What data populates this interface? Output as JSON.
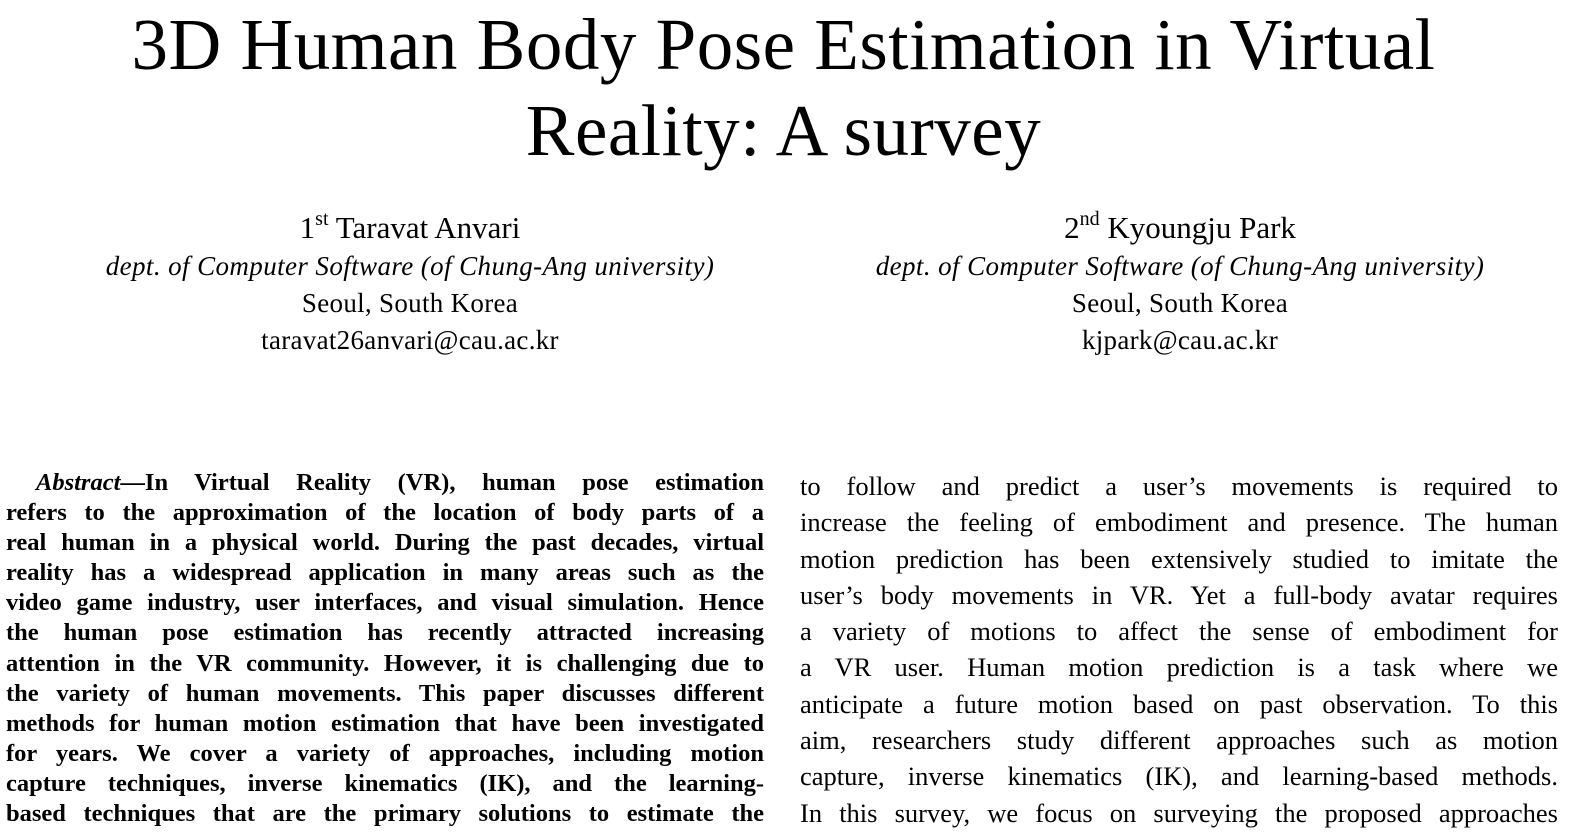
{
  "paper": {
    "title_line1": "3D Human Body Pose Estimation in Virtual",
    "title_line2": "Reality: A survey",
    "authors": [
      {
        "ordinal_number": "1",
        "ordinal_suffix": "st",
        "name": "Taravat Anvari",
        "dept": "dept. of Computer Software (of Chung-Ang university)",
        "city": "Seoul, South Korea",
        "email": "taravat26anvari@cau.ac.kr"
      },
      {
        "ordinal_number": "2",
        "ordinal_suffix": "nd",
        "name": "Kyoungju Park",
        "dept": "dept. of Computer Software (of Chung-Ang university)",
        "city": "Seoul, South Korea",
        "email": "kjpark@cau.ac.kr"
      }
    ],
    "abstract_heading": "Abstract",
    "abstract_lines": [
      "—In Virtual Reality (VR), human pose estimation",
      "refers to the approximation of the location of body parts of a",
      "real human in a physical world. During the past decades, virtual",
      "reality has a widespread application in many areas such as the",
      "video game industry, user interfaces, and visual simulation. Hence",
      "the human pose estimation has recently attracted increasing",
      "attention in the VR community. However, it is challenging due to",
      "the variety of human movements. This paper discusses different",
      "methods for human motion estimation that have been investigated",
      "for years. We cover a variety of approaches, including motion",
      "capture techniques, inverse kinematics (IK), and the learning-",
      "based techniques that are the primary solutions to estimate the"
    ],
    "body_lines": [
      "to follow and predict a user’s movements is required to",
      "increase the feeling of embodiment and presence. The human",
      "motion prediction has been extensively studied to imitate the",
      "user’s body movements in VR. Yet a full-body avatar requires",
      "a variety of motions to affect the sense of embodiment for",
      "a VR user. Human motion prediction is a task where we",
      "anticipate a future motion based on past observation. To this",
      "aim, researchers study different approaches such as motion",
      "capture, inverse kinematics (IK), and learning-based methods.",
      "In this survey, we focus on surveying the proposed approaches"
    ]
  }
}
